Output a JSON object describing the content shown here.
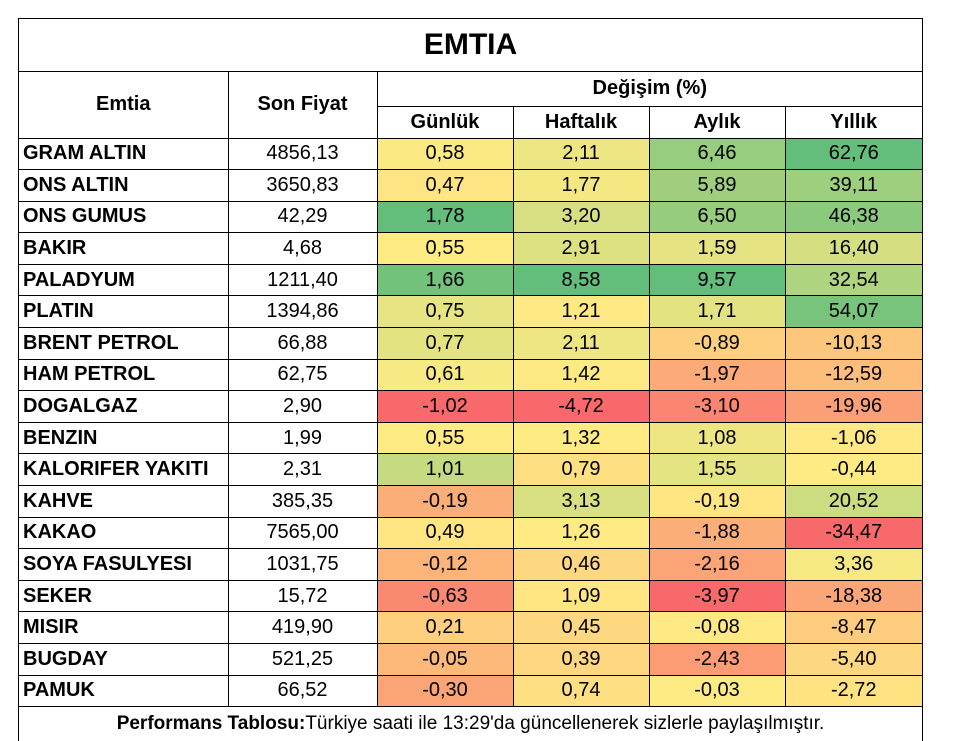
{
  "title": "EMTIA",
  "headers": {
    "emtia": "Emtia",
    "son_fiyat": "Son Fiyat",
    "degisim": "Değişim (%)",
    "gunluk": "Günlük",
    "haftalik": "Haftalık",
    "aylik": "Aylık",
    "yillik": "Yıllık"
  },
  "rows": [
    {
      "name": "GRAM ALTIN",
      "price": "4856,13",
      "gunluk": "0,58",
      "haftalik": "2,11",
      "aylik": "6,46",
      "yillik": "62,76"
    },
    {
      "name": "ONS ALTIN",
      "price": "3650,83",
      "gunluk": "0,47",
      "haftalik": "1,77",
      "aylik": "5,89",
      "yillik": "39,11"
    },
    {
      "name": "ONS GUMUS",
      "price": "42,29",
      "gunluk": "1,78",
      "haftalik": "3,20",
      "aylik": "6,50",
      "yillik": "46,38"
    },
    {
      "name": "BAKIR",
      "price": "4,68",
      "gunluk": "0,55",
      "haftalik": "2,91",
      "aylik": "1,59",
      "yillik": "16,40"
    },
    {
      "name": "PALADYUM",
      "price": "1211,40",
      "gunluk": "1,66",
      "haftalik": "8,58",
      "aylik": "9,57",
      "yillik": "32,54"
    },
    {
      "name": "PLATIN",
      "price": "1394,86",
      "gunluk": "0,75",
      "haftalik": "1,21",
      "aylik": "1,71",
      "yillik": "54,07"
    },
    {
      "name": "BRENT PETROL",
      "price": "66,88",
      "gunluk": "0,77",
      "haftalik": "2,11",
      "aylik": "-0,89",
      "yillik": "-10,13"
    },
    {
      "name": "HAM PETROL",
      "price": "62,75",
      "gunluk": "0,61",
      "haftalik": "1,42",
      "aylik": "-1,97",
      "yillik": "-12,59"
    },
    {
      "name": "DOGALGAZ",
      "price": "2,90",
      "gunluk": "-1,02",
      "haftalik": "-4,72",
      "aylik": "-3,10",
      "yillik": "-19,96"
    },
    {
      "name": "BENZIN",
      "price": "1,99",
      "gunluk": "0,55",
      "haftalik": "1,32",
      "aylik": "1,08",
      "yillik": "-1,06"
    },
    {
      "name": "KALORIFER YAKITI",
      "price": "2,31",
      "gunluk": "1,01",
      "haftalik": "0,79",
      "aylik": "1,55",
      "yillik": "-0,44"
    },
    {
      "name": "KAHVE",
      "price": "385,35",
      "gunluk": "-0,19",
      "haftalik": "3,13",
      "aylik": "-0,19",
      "yillik": "20,52"
    },
    {
      "name": "KAKAO",
      "price": "7565,00",
      "gunluk": "0,49",
      "haftalik": "1,26",
      "aylik": "-1,88",
      "yillik": "-34,47"
    },
    {
      "name": "SOYA FASULYESI",
      "price": "1031,75",
      "gunluk": "-0,12",
      "haftalik": "0,46",
      "aylik": "-2,16",
      "yillik": "3,36"
    },
    {
      "name": "SEKER",
      "price": "15,72",
      "gunluk": "-0,63",
      "haftalik": "1,09",
      "aylik": "-3,97",
      "yillik": "-18,38"
    },
    {
      "name": "MISIR",
      "price": "419,90",
      "gunluk": "0,21",
      "haftalik": "0,45",
      "aylik": "-0,08",
      "yillik": "-8,47"
    },
    {
      "name": "BUGDAY",
      "price": "521,25",
      "gunluk": "-0,05",
      "haftalik": "0,39",
      "aylik": "-2,43",
      "yillik": "-5,40"
    },
    {
      "name": "PAMUK",
      "price": "66,52",
      "gunluk": "-0,30",
      "haftalik": "0,74",
      "aylik": "-0,03",
      "yillik": "-2,72"
    }
  ],
  "footer": {
    "label": "Performans Tablosu:",
    "text": " Türkiye saati ile 13:29'da güncellenerek sizlerle paylaşılmıştır."
  },
  "colors": {
    "strong_green": "#63be7b",
    "light_green": "#c6dc80",
    "neutral_yellow": "#ffeb84",
    "orange": "#fbaa77",
    "strong_red": "#f8696b"
  }
}
